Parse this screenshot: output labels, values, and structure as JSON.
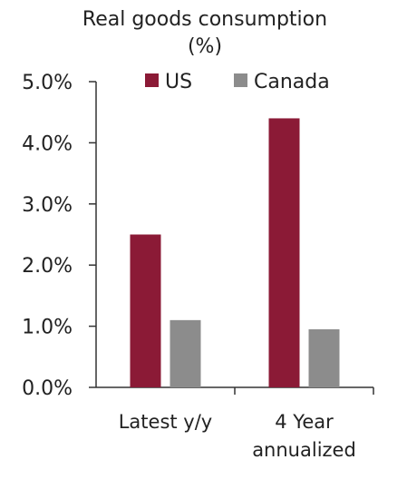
{
  "chart_data": {
    "type": "bar",
    "title": [
      "Real goods consumption",
      "(%)"
    ],
    "categories": [
      [
        "Latest y/y"
      ],
      [
        "4 Year",
        "annualized"
      ]
    ],
    "series": [
      {
        "name": "US",
        "color": "#8b1a36",
        "values": [
          2.5,
          4.4
        ]
      },
      {
        "name": "Canada",
        "color": "#8c8c8c",
        "values": [
          1.1,
          0.95
        ]
      }
    ],
    "ylim": [
      0,
      5
    ],
    "yticks": [
      "0.0%",
      "1.0%",
      "2.0%",
      "3.0%",
      "4.0%",
      "5.0%"
    ],
    "ytick_values": [
      0,
      1,
      2,
      3,
      4,
      5
    ],
    "legend_position": "top",
    "grid": false
  }
}
